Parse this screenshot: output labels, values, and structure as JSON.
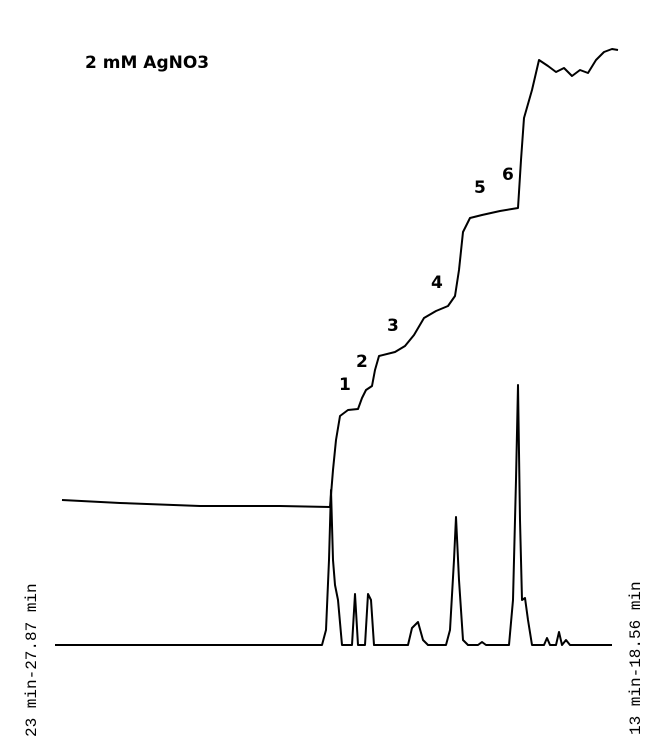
{
  "title": "2 mM AgNO3",
  "peak_labels": [
    "1",
    "2",
    "3",
    "4",
    "5",
    "6"
  ],
  "left_axis_label": "23 min-27.87 min",
  "right_axis_label": "13 min-18.56 min"
}
